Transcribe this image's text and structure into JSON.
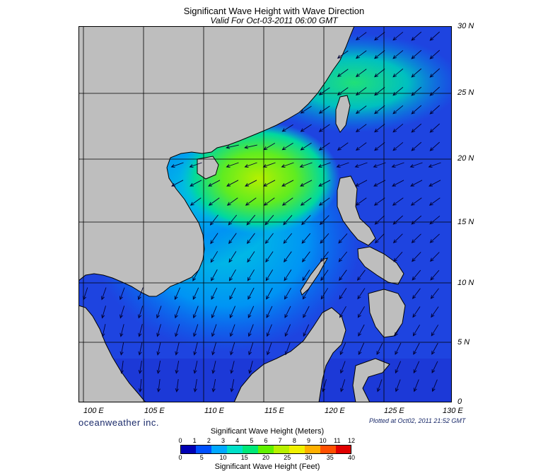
{
  "title": "Significant Wave Height with Wave Direction",
  "valid_time": "Valid For Oct-03-2011 06:00 GMT",
  "lon_ticks": [
    "100 E",
    "105 E",
    "110 E",
    "115 E",
    "120 E",
    "125 E",
    "130 E"
  ],
  "lat_ticks": [
    "30 N",
    "25 N",
    "20 N",
    "15 N",
    "10 N",
    "5 N",
    "0"
  ],
  "brand": "oceanweather inc.",
  "plotted": "Plotted at Oct02, 2011 21:52 GMT",
  "colorbar": {
    "title_meters": "Significant Wave Height (Meters)",
    "title_feet": "Significant Wave Height (Feet)",
    "meters_ticks": [
      "0",
      "1",
      "2",
      "3",
      "4",
      "5",
      "6",
      "7",
      "8",
      "9",
      "10",
      "11",
      "12"
    ],
    "feet_ticks": [
      "0",
      "5",
      "10",
      "15",
      "20",
      "25",
      "30",
      "35",
      "40"
    ],
    "colors": [
      "#0000b4",
      "#0050ff",
      "#00a8ff",
      "#00e0c8",
      "#00e878",
      "#60f000",
      "#b8f000",
      "#f0f000",
      "#ffb000",
      "#ff5000",
      "#e00000"
    ]
  },
  "colors": {
    "land": "#bebebe",
    "deep_water": "#1a3cd8",
    "mid_water": "#00a0f0",
    "peak_water": "#9ef000",
    "grid": "#000000"
  }
}
